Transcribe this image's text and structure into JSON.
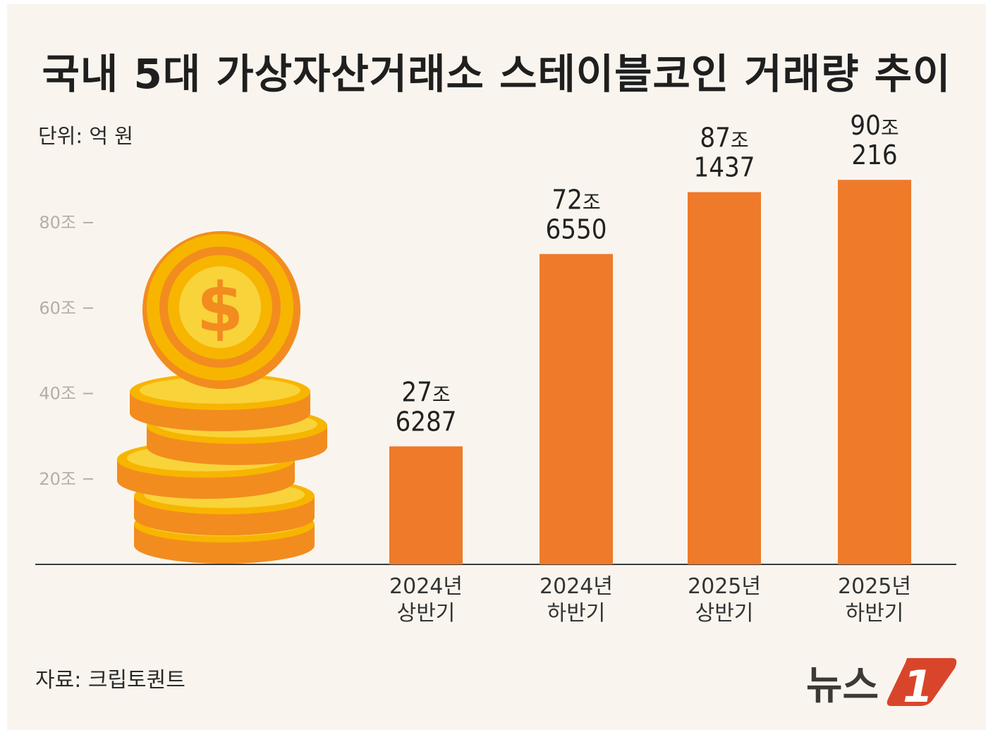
{
  "title": "국내 5대 가상자산거래소 스테이블코인 거래량 추이",
  "unit_label": "단위: 억 원",
  "source_label": "자료: 크립토퀀트",
  "brand": {
    "name": "뉴스",
    "mark": "1",
    "icon": "news1-logo-icon",
    "accent": "#d9452b"
  },
  "colors": {
    "bar": "#ee7a2a",
    "background": "#f9f5ee",
    "coin_face": "#f7b500",
    "coin_inner": "#f9d33a",
    "coin_edge": "#f28c1f"
  },
  "decoration": "dollar-coin-stack-icon",
  "chart_data": {
    "type": "bar",
    "title": "국내 5대 가상자산거래소 스테이블코인 거래량 추이",
    "unit": "단위: 억 원",
    "ylim": [
      0,
      100
    ],
    "yticks": [
      20,
      40,
      60,
      80
    ],
    "ytick_labels": [
      "20조",
      "40조",
      "60조",
      "80조"
    ],
    "categories": [
      [
        "2024년",
        "상반기"
      ],
      [
        "2024년",
        "하반기"
      ],
      [
        "2025년",
        "상반기"
      ],
      [
        "2025년",
        "하반기"
      ]
    ],
    "values": [
      27.6287,
      72.655,
      87.1437,
      90.0216
    ],
    "value_labels": [
      {
        "jo": "27",
        "jo_unit": "조",
        "eok": "6287"
      },
      {
        "jo": "72",
        "jo_unit": "조",
        "eok": "6550"
      },
      {
        "jo": "87",
        "jo_unit": "조",
        "eok": "1437"
      },
      {
        "jo": "90",
        "jo_unit": "조",
        "eok": "216"
      }
    ],
    "grid": false,
    "legend": "none"
  }
}
